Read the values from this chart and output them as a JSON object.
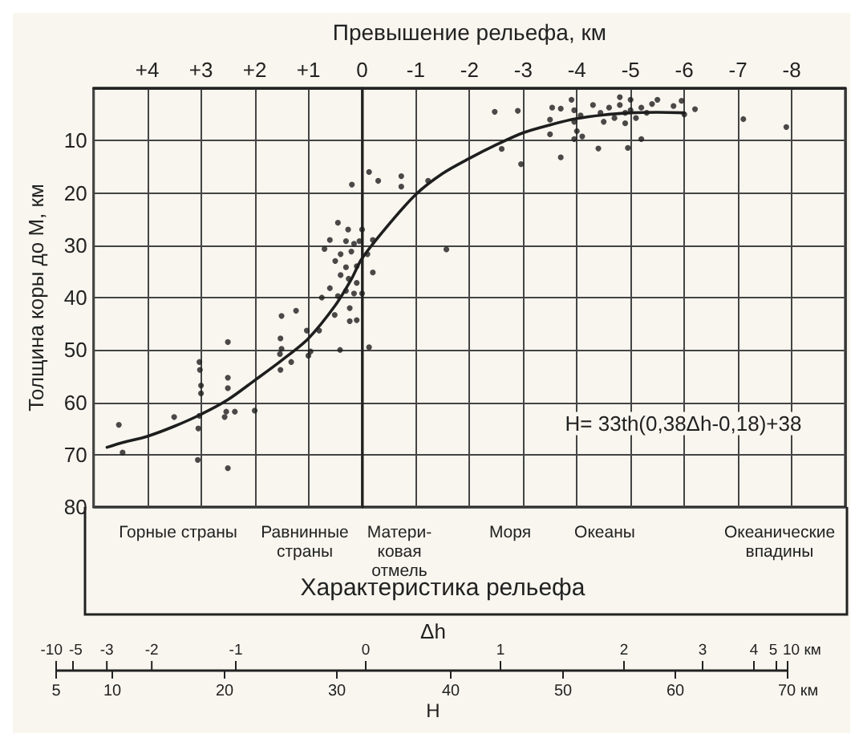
{
  "chart_data": {
    "type": "scatter",
    "xlabel": "Превышение рельефа, км",
    "ylabel": "Толщина коры до М, км",
    "xlim": [
      5,
      -9
    ],
    "xticks": [
      {
        "value": 4,
        "label": "+4"
      },
      {
        "value": 3,
        "label": "+3"
      },
      {
        "value": 2,
        "label": "+2"
      },
      {
        "value": 1,
        "label": "+1"
      },
      0,
      -1,
      -2,
      -3,
      -4,
      -5,
      -6,
      -7,
      -8
    ],
    "ylim": [
      80,
      0
    ],
    "yticks": [
      10,
      20,
      30,
      40,
      50,
      60,
      70,
      80
    ],
    "grid": true,
    "marker": "circle",
    "series": [
      {
        "color": "#1e1e1e",
        "x": [
          -2.47,
          -2.9,
          -2.6,
          -2.96,
          -3.54,
          -3.7,
          -3.5,
          -3.5,
          -3.9,
          -3.95,
          -3.95,
          -4.07,
          -4.0,
          -3.95,
          -4.1,
          -3.7,
          -4.3,
          -4.44,
          -4.5,
          -4.4,
          -4.6,
          -4.7,
          -4.8,
          -4.8,
          -4.9,
          -4.9,
          -5.0,
          -5.0,
          -5.1,
          -4.95,
          -5.2,
          -5.2,
          -5.3,
          -5.4,
          -5.5,
          -5.8,
          -5.95,
          -6.0,
          -6.2,
          -7.1,
          -7.9,
          0.19,
          -0.13,
          -0.3,
          -0.73,
          -0.73,
          -1.23,
          -1.57,
          0.45,
          0.26,
          0,
          0.6,
          0.3,
          0.15,
          0.05,
          -0.2,
          0.7,
          0.4,
          0.2,
          -0.1,
          0.5,
          0.3,
          0.1,
          -0.2,
          0.4,
          0.25,
          0.1,
          0.6,
          0.3,
          0,
          0.75,
          0.45,
          0.15,
          1.5,
          1.23,
          1.52,
          1.5,
          1.53,
          1.52,
          1.32,
          1.03,
          0.8,
          1.0,
          0.96,
          0.51,
          0.41,
          0.23,
          0.1,
          -0.13,
          0.23,
          4.53,
          4.46,
          3.5,
          3.03,
          3.02,
          3.0,
          3.0,
          3.03,
          3.05,
          3.06,
          2.5,
          2.5,
          2.5,
          2.53,
          2.56,
          2.37,
          2.5,
          2.0
        ],
        "values": [
          4.5,
          4.3,
          11.6,
          14.5,
          3.7,
          3.9,
          6,
          8.8,
          2.2,
          4.2,
          6.4,
          5.2,
          8.2,
          9.7,
          9.2,
          13.2,
          3.2,
          4.7,
          6.4,
          11.5,
          3.7,
          5.7,
          3.2,
          1.7,
          4.7,
          6.7,
          2.2,
          4.2,
          5.7,
          11.4,
          9.7,
          3.7,
          4.7,
          3.0,
          2.2,
          3.4,
          2.4,
          5.0,
          4.0,
          5.9,
          7.4,
          18.4,
          16,
          17.7,
          16.8,
          18.8,
          17.7,
          30.8,
          25.7,
          27,
          27,
          29,
          29.2,
          29.7,
          29.2,
          29,
          30.7,
          31.7,
          31.2,
          31.7,
          33,
          34.2,
          34,
          35.2,
          35.7,
          36.4,
          37.2,
          38.2,
          38.7,
          39.2,
          40,
          39.7,
          39.2,
          43.5,
          42.5,
          47.8,
          49.8,
          50.8,
          53.8,
          52.3,
          46.3,
          46.3,
          51.1,
          50.3,
          43.3,
          50,
          42,
          44.3,
          49.5,
          44.5,
          64.3,
          69.6,
          62.8,
          52.3,
          53.8,
          56.8,
          58.3,
          62.6,
          65,
          71,
          48.5,
          55.3,
          57.3,
          61.8,
          62.8,
          61.8,
          72.6,
          61.6
        ]
      },
      {
        "type": "line",
        "color": "#1e1e1e",
        "marker": "none",
        "line_style": "solid",
        "x": [
          4.75,
          4.5,
          4,
          3.5,
          3,
          2.5,
          2,
          1.5,
          1,
          0.5,
          0.2,
          0,
          -0.5,
          -1,
          -1.5,
          -2,
          -2.5,
          -3,
          -3.5,
          -4,
          -4.5,
          -5,
          -5.5,
          -6
        ],
        "values": [
          68.6,
          67.8,
          66.5,
          64.6,
          62.3,
          59.5,
          55.8,
          52,
          47.8,
          41.5,
          36.5,
          32.5,
          26,
          20.3,
          16.3,
          13.4,
          10.8,
          8.5,
          7,
          5.8,
          5.1,
          4.7,
          4.6,
          4.7
        ]
      }
    ],
    "annotations": [
      "H= 33th(0,38Δh-0,18)+38",
      "Горные страны",
      "Равнинные\nстраны",
      "Матери-\nковая\nотмель",
      "Моря",
      "Океаны",
      "Океанические\nвпадины",
      "Характеристика рельефа",
      "Δh",
      "-10",
      "-5",
      "-3",
      "-2",
      "-1",
      "0",
      "1",
      "2",
      "3",
      "4",
      "5",
      "10 км",
      "H",
      "5",
      "10",
      "20",
      "30",
      "40",
      "50",
      "60",
      "70 км"
    ]
  }
}
